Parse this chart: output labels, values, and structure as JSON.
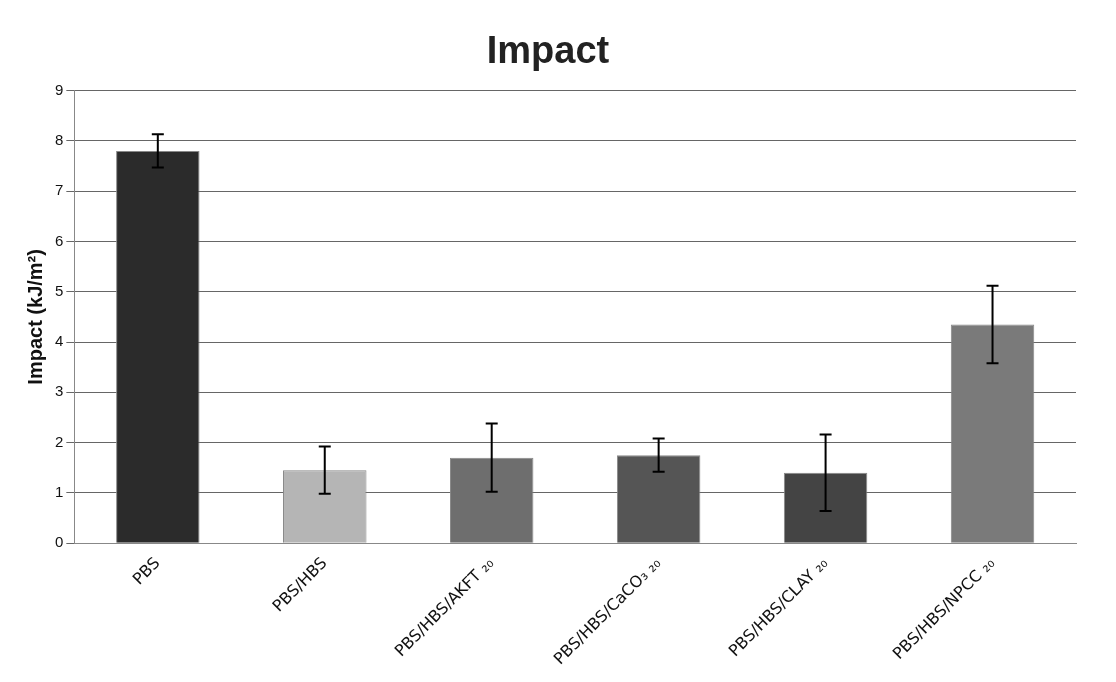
{
  "chart_data": {
    "type": "bar",
    "title": "Impact",
    "ylabel": "Impact (kJ/m²)",
    "categories": [
      "PBS",
      "PBS/HBS",
      "PBS/HBS/AKFT ₂₀",
      "PBS/HBS/CaCO₃ ₂₀",
      "PBS/HBS/CLAY ₂₀",
      "PBS/HBS/NPCC ₂₀"
    ],
    "values": [
      7.8,
      1.45,
      1.7,
      1.75,
      1.4,
      4.35
    ],
    "errors": [
      0.33,
      0.47,
      0.68,
      0.33,
      0.76,
      0.77
    ],
    "colors": [
      "#2b2b2b",
      "#b5b5b5",
      "#6e6e6e",
      "#555555",
      "#444444",
      "#7a7a7a"
    ],
    "ylim": [
      0,
      9
    ],
    "yticks": [
      0,
      1,
      2,
      3,
      4,
      5,
      6,
      7,
      8,
      9
    ],
    "grid": "y",
    "legend": false
  }
}
